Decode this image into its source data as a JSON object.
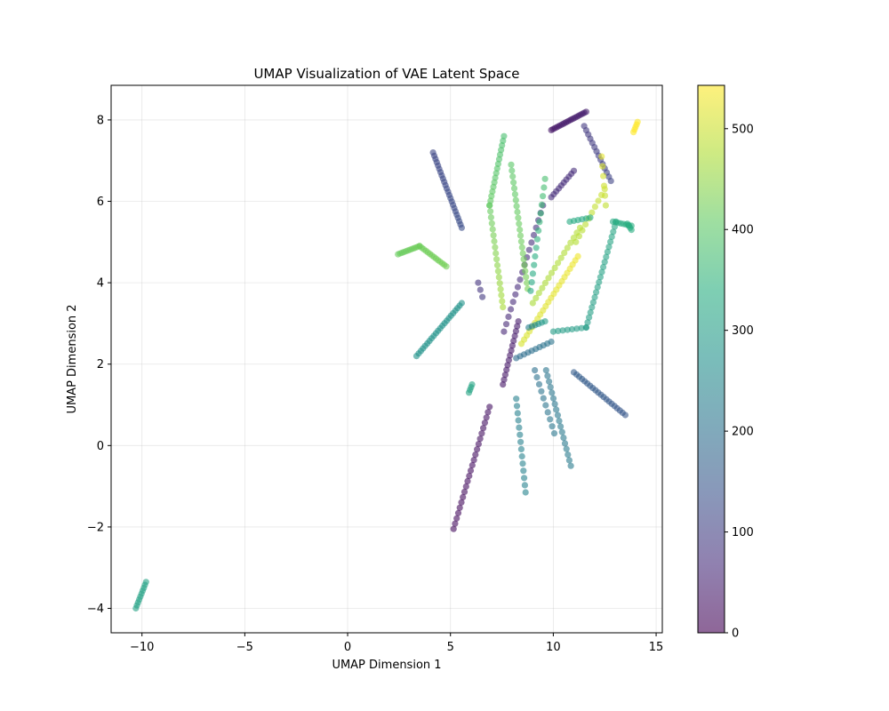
{
  "chart_data": {
    "type": "scatter",
    "title": "UMAP Visualization of VAE Latent Space",
    "xlabel": "UMAP Dimension 1",
    "ylabel": "UMAP Dimension 2",
    "xlim": [
      -11.5,
      15.3
    ],
    "ylim": [
      -4.6,
      8.85
    ],
    "xticks": [
      -10,
      -5,
      0,
      5,
      10,
      15
    ],
    "yticks": [
      -4,
      -2,
      0,
      2,
      4,
      6,
      8
    ],
    "grid": true,
    "legend": "none",
    "colormap": "viridis",
    "point_alpha": 0.6,
    "colorbar": {
      "range": [
        0,
        543
      ],
      "ticks": [
        0,
        100,
        200,
        300,
        400,
        500
      ]
    },
    "strands": [
      {
        "from": [
          -10.3,
          -4.0
        ],
        "to": [
          -9.8,
          -3.35
        ],
        "c0": 310,
        "c1": 310,
        "n": 10
      },
      {
        "from": [
          5.15,
          -2.05
        ],
        "to": [
          6.9,
          0.95
        ],
        "c0": 15,
        "c1": 25,
        "n": 24
      },
      {
        "from": [
          3.35,
          2.2
        ],
        "to": [
          5.55,
          3.5
        ],
        "c0": 275,
        "c1": 275,
        "n": 22
      },
      {
        "from": [
          5.9,
          1.3
        ],
        "to": [
          6.05,
          1.5
        ],
        "c0": 315,
        "c1": 315,
        "n": 4
      },
      {
        "from": [
          4.15,
          7.2
        ],
        "to": [
          5.55,
          5.35
        ],
        "c0": 115,
        "c1": 130,
        "n": 24
      },
      {
        "from": [
          8.65,
          -1.15
        ],
        "to": [
          8.2,
          1.15
        ],
        "c0": 240,
        "c1": 235,
        "n": 14
      },
      {
        "from": [
          10.85,
          -0.5
        ],
        "to": [
          9.65,
          1.85
        ],
        "c0": 225,
        "c1": 210,
        "n": 18
      },
      {
        "from": [
          11.0,
          1.8
        ],
        "to": [
          13.5,
          0.75
        ],
        "c0": 160,
        "c1": 150,
        "n": 20
      },
      {
        "from": [
          9.1,
          1.85
        ],
        "to": [
          10.05,
          0.3
        ],
        "c0": 200,
        "c1": 215,
        "n": 10
      },
      {
        "from": [
          7.55,
          1.5
        ],
        "to": [
          8.3,
          3.05
        ],
        "c0": 30,
        "c1": 40,
        "n": 14
      },
      {
        "from": [
          8.2,
          2.15
        ],
        "to": [
          9.9,
          2.55
        ],
        "c0": 190,
        "c1": 210,
        "n": 10
      },
      {
        "from": [
          7.6,
          2.8
        ],
        "to": [
          9.5,
          5.9
        ],
        "c0": 60,
        "c1": 80,
        "n": 18
      },
      {
        "from": [
          9.9,
          6.1
        ],
        "to": [
          11.0,
          6.75
        ],
        "c0": 70,
        "c1": 70,
        "n": 10
      },
      {
        "from": [
          9.9,
          7.75
        ],
        "to": [
          11.6,
          8.2
        ],
        "c0": 35,
        "c1": 45,
        "n": 20
      },
      {
        "from": [
          11.5,
          7.85
        ],
        "to": [
          12.8,
          6.5
        ],
        "c0": 90,
        "c1": 110,
        "n": 14
      },
      {
        "from": [
          12.55,
          5.9
        ],
        "to": [
          12.35,
          7.1
        ],
        "c0": 490,
        "c1": 520,
        "n": 6
      },
      {
        "from": [
          13.9,
          7.7
        ],
        "to": [
          14.1,
          7.95
        ],
        "c0": 543,
        "c1": 543,
        "n": 5
      },
      {
        "from": [
          2.45,
          4.7
        ],
        "to": [
          3.5,
          4.9
        ],
        "c0": 415,
        "c1": 420,
        "n": 12
      },
      {
        "from": [
          3.5,
          4.9
        ],
        "to": [
          4.8,
          4.4
        ],
        "c0": 420,
        "c1": 425,
        "n": 14
      },
      {
        "from": [
          7.6,
          7.6
        ],
        "to": [
          6.9,
          5.9
        ],
        "c0": 380,
        "c1": 410,
        "n": 16
      },
      {
        "from": [
          6.9,
          5.9
        ],
        "to": [
          7.55,
          3.4
        ],
        "c0": 410,
        "c1": 470,
        "n": 18
      },
      {
        "from": [
          7.95,
          6.9
        ],
        "to": [
          8.75,
          3.85
        ],
        "c0": 400,
        "c1": 430,
        "n": 22
      },
      {
        "from": [
          8.9,
          3.8
        ],
        "to": [
          9.6,
          6.55
        ],
        "c0": 320,
        "c1": 380,
        "n": 14
      },
      {
        "from": [
          8.45,
          2.5
        ],
        "to": [
          11.2,
          4.65
        ],
        "c0": 510,
        "c1": 530,
        "n": 22
      },
      {
        "from": [
          9.0,
          3.5
        ],
        "to": [
          11.3,
          5.35
        ],
        "c0": 470,
        "c1": 480,
        "n": 16
      },
      {
        "from": [
          11.1,
          5.0
        ],
        "to": [
          12.5,
          6.3
        ],
        "c0": 480,
        "c1": 500,
        "n": 10
      },
      {
        "from": [
          10.8,
          5.5
        ],
        "to": [
          11.8,
          5.6
        ],
        "c0": 330,
        "c1": 330,
        "n": 6
      },
      {
        "from": [
          10.0,
          2.8
        ],
        "to": [
          11.6,
          2.9
        ],
        "c0": 300,
        "c1": 300,
        "n": 8
      },
      {
        "from": [
          11.6,
          2.9
        ],
        "to": [
          13.05,
          5.5
        ],
        "c0": 300,
        "c1": 320,
        "n": 22
      },
      {
        "from": [
          12.9,
          5.5
        ],
        "to": [
          13.8,
          5.4
        ],
        "c0": 330,
        "c1": 340,
        "n": 8
      },
      {
        "from": [
          13.6,
          5.45
        ],
        "to": [
          13.8,
          5.3
        ],
        "c0": 340,
        "c1": 340,
        "n": 4
      },
      {
        "from": [
          8.8,
          2.9
        ],
        "to": [
          9.6,
          3.05
        ],
        "c0": 230,
        "c1": 300,
        "n": 6
      },
      {
        "from": [
          6.35,
          4.0
        ],
        "to": [
          6.55,
          3.65
        ],
        "c0": 80,
        "c1": 90,
        "n": 3
      }
    ]
  }
}
